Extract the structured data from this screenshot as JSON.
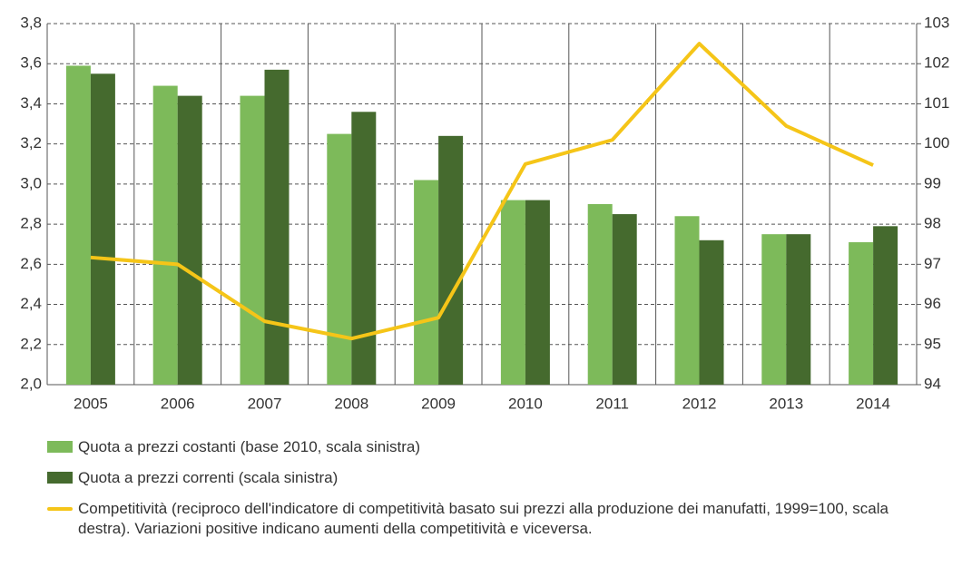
{
  "chart_data": {
    "type": "bar",
    "categories": [
      "2005",
      "2006",
      "2007",
      "2008",
      "2009",
      "2010",
      "2011",
      "2012",
      "2013",
      "2014"
    ],
    "series": [
      {
        "name": "Quota a prezzi costanti (base 2010, scala sinistra)",
        "type": "bar",
        "color": "#7dba5a",
        "values": [
          3.59,
          3.49,
          3.44,
          3.25,
          3.02,
          2.92,
          2.9,
          2.84,
          2.75,
          2.71
        ]
      },
      {
        "name": "Quota a prezzi correnti  (scala sinistra)",
        "type": "bar",
        "color": "#456a2e",
        "values": [
          3.55,
          3.44,
          3.57,
          3.36,
          3.24,
          2.92,
          2.85,
          2.72,
          2.75,
          2.79
        ]
      },
      {
        "name": "Competitività (reciproco dell'indicatore di competitività basato sui prezzi alla produzione dei manufatti, 1999=100, scala destra). Variazioni positive indicano aumenti della competitività e viceversa.",
        "type": "line",
        "axis": "y2",
        "color": "#f5c518",
        "values": [
          97.17,
          97.0,
          95.58,
          95.15,
          95.67,
          99.5,
          100.1,
          102.5,
          100.45,
          99.47
        ]
      }
    ],
    "ylim": [
      2.0,
      3.8
    ],
    "yticks": [
      {
        "value": 2.0,
        "label": "2,0"
      },
      {
        "value": 2.2,
        "label": "2,2"
      },
      {
        "value": 2.4,
        "label": "2,4"
      },
      {
        "value": 2.6,
        "label": "2,6"
      },
      {
        "value": 2.8,
        "label": "2,8"
      },
      {
        "value": 3.0,
        "label": "3,0"
      },
      {
        "value": 3.2,
        "label": "3,2"
      },
      {
        "value": 3.4,
        "label": "3,4"
      },
      {
        "value": 3.6,
        "label": "3,6"
      },
      {
        "value": 3.8,
        "label": "3,8"
      }
    ],
    "y2lim": [
      94,
      103
    ],
    "y2ticks": [
      94,
      95,
      96,
      97,
      98,
      99,
      100,
      101,
      102,
      103
    ],
    "grid": true
  }
}
